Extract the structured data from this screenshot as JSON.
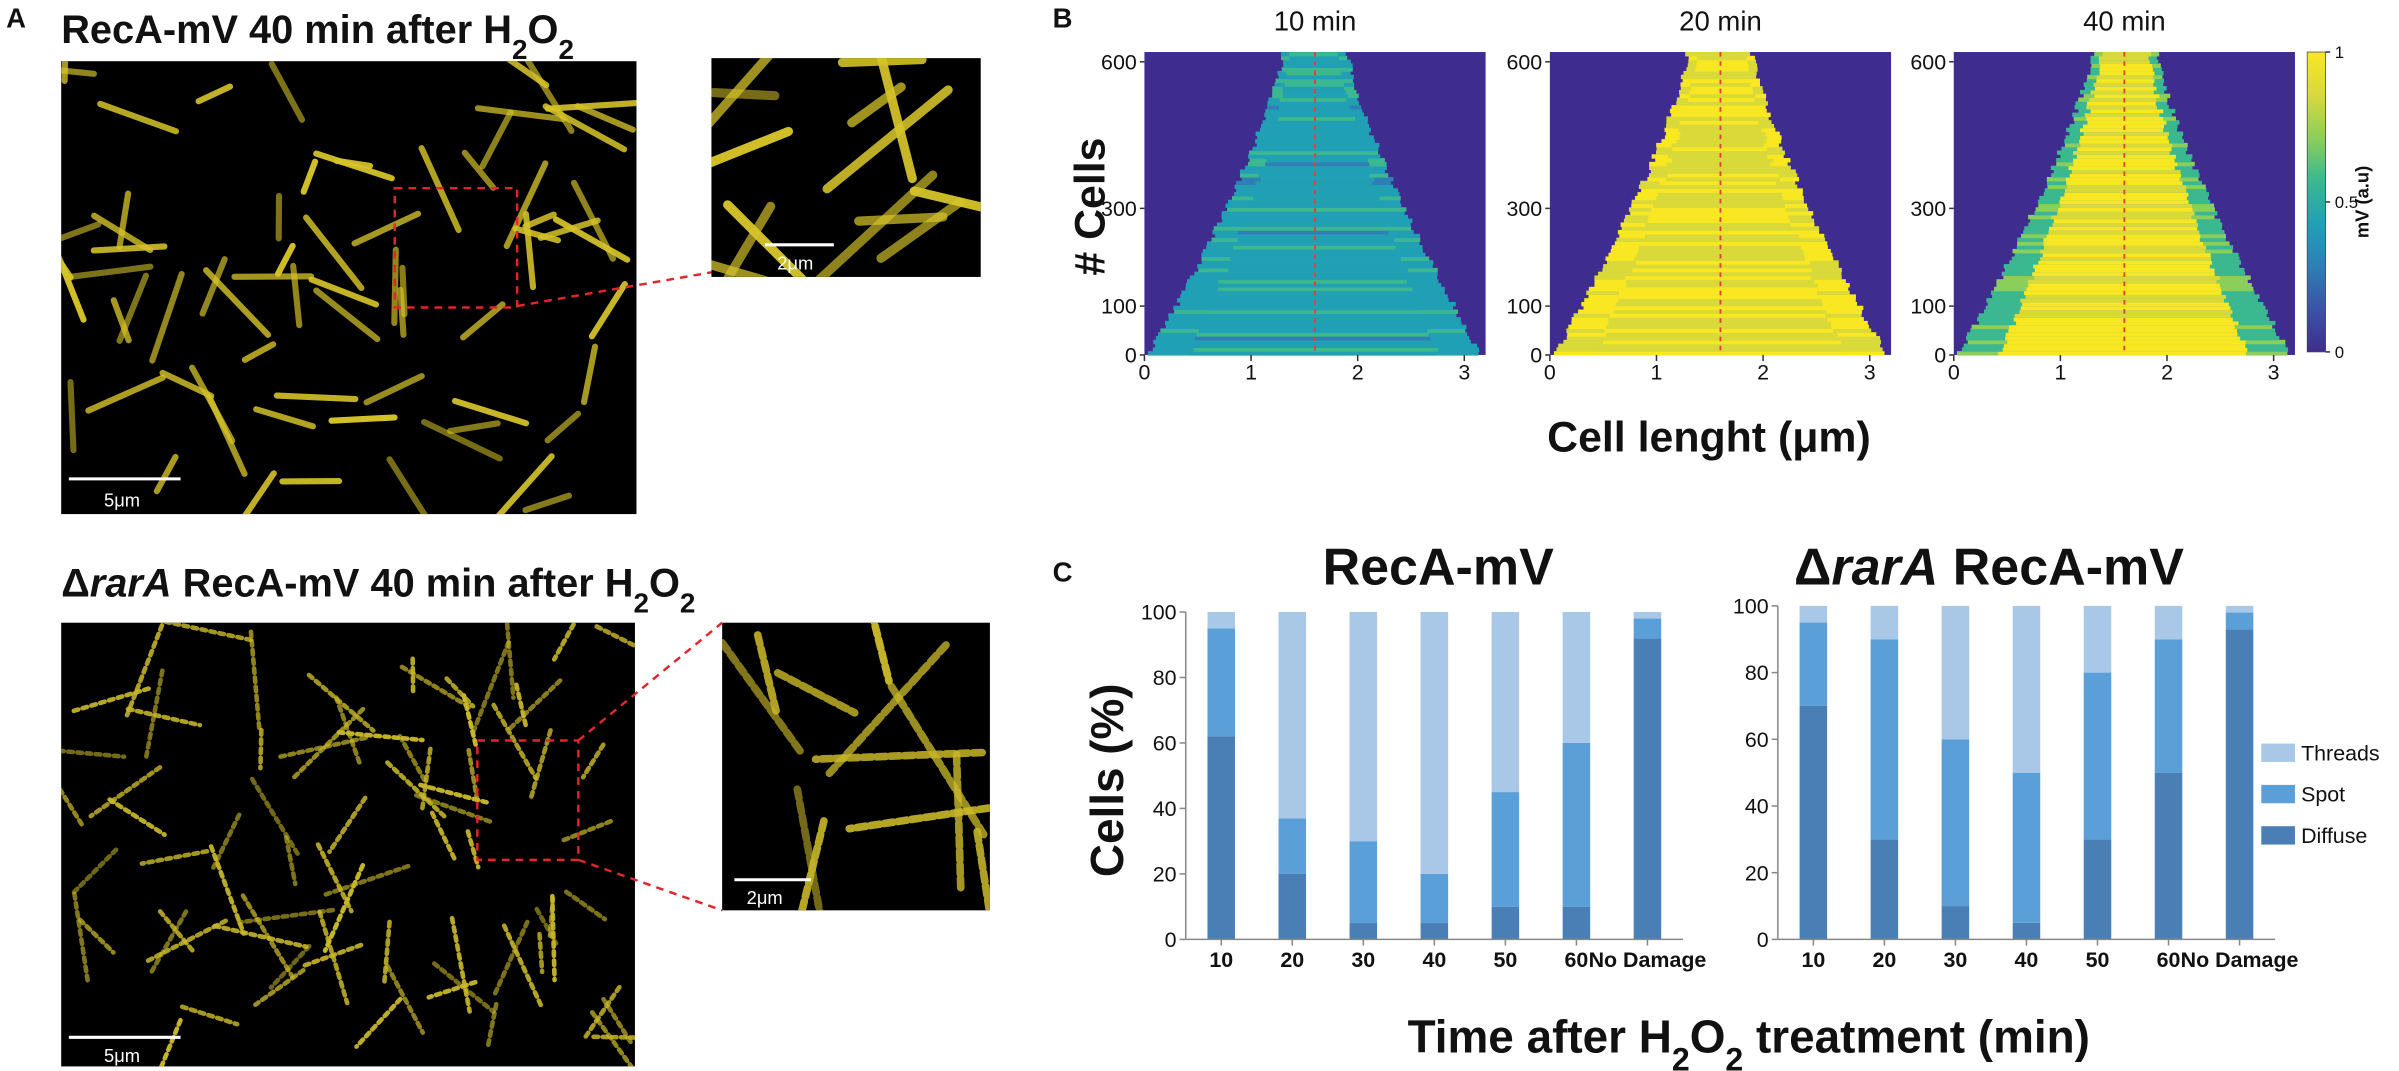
{
  "panel_labels": [
    "A",
    "B",
    "C"
  ],
  "panel_a": {
    "images": [
      {
        "title": [
          {
            "text": "RecA-mV  40 min after H"
          },
          {
            "text": "2",
            "sub": true
          },
          {
            "text": "O"
          },
          {
            "text": "2",
            "sub": true
          }
        ],
        "scale_bar": "5μm",
        "inset_scale_bar": "2μm"
      },
      {
        "title": [
          {
            "text": "Δ"
          },
          {
            "text": "rarA",
            "italic": true
          },
          {
            "text": " RecA-mV  40 min after H"
          },
          {
            "text": "2",
            "sub": true
          },
          {
            "text": "O"
          },
          {
            "text": "2",
            "sub": true
          }
        ],
        "scale_bar": "5μm",
        "inset_scale_bar": "2μm"
      }
    ]
  },
  "panel_b": {
    "x_label": "Cell lenght (μm)",
    "y_label": "# Cells",
    "colorbar": {
      "label": "mV (a.u)",
      "ticks": [
        0,
        0.5,
        1
      ],
      "lim": [
        0,
        1
      ],
      "colors": [
        "#3e2d8f",
        "#3b54a6",
        "#2f7fb6",
        "#21a0b5",
        "#3bb88f",
        "#8cce5a",
        "#d9d93a",
        "#f9e722"
      ]
    }
  },
  "panel_c": {
    "x_label": [
      {
        "text": "Time after H"
      },
      {
        "text": "2",
        "sub": true
      },
      {
        "text": "O"
      },
      {
        "text": "2",
        "sub": true
      },
      {
        "text": " treatment (min)"
      }
    ]
  },
  "chart_data": [
    {
      "type": "heatmap",
      "title": "10 min",
      "xlim": [
        0,
        3.2
      ],
      "ylim": [
        0,
        620
      ],
      "xticks": [
        0,
        1,
        2,
        3
      ],
      "yticks": [
        0,
        100,
        300,
        600
      ],
      "midline": 1.6
    },
    {
      "type": "heatmap",
      "title": "20 min",
      "xlim": [
        0,
        3.2
      ],
      "ylim": [
        0,
        620
      ],
      "xticks": [
        0,
        1,
        2,
        3
      ],
      "yticks": [
        0,
        100,
        300,
        600
      ],
      "midline": 1.6
    },
    {
      "type": "heatmap",
      "title": "40 min",
      "xlim": [
        0,
        3.2
      ],
      "ylim": [
        0,
        620
      ],
      "xticks": [
        0,
        1,
        2,
        3
      ],
      "yticks": [
        0,
        100,
        300,
        600
      ],
      "midline": 1.6
    },
    {
      "type": "stacked_bar",
      "title": [
        {
          "text": "RecA-mV"
        }
      ],
      "y_label": "Cells (%)",
      "categories": [
        "10",
        "20",
        "30",
        "40",
        "50",
        "60",
        "No Damage"
      ],
      "ylim": [
        0,
        100
      ],
      "yticks": [
        0,
        20,
        40,
        60,
        80,
        100
      ],
      "series": [
        {
          "color": "#4a7fb5",
          "values": [
            62,
            20,
            5,
            5,
            10,
            10,
            92
          ]
        },
        {
          "color": "#5b9fd8",
          "values": [
            33,
            17,
            25,
            15,
            35,
            50,
            6
          ]
        },
        {
          "color": "#a9c8e8",
          "values": [
            5,
            63,
            70,
            80,
            55,
            40,
            2
          ]
        }
      ]
    },
    {
      "type": "stacked_bar",
      "title": [
        {
          "text": "Δ"
        },
        {
          "text": "rarA",
          "italic": true
        },
        {
          "text": " RecA-mV"
        }
      ],
      "categories": [
        "10",
        "20",
        "30",
        "40",
        "50",
        "60",
        "No Damage"
      ],
      "ylim": [
        0,
        100
      ],
      "yticks": [
        0,
        20,
        40,
        60,
        80,
        100
      ],
      "series": [
        {
          "name": "Diffuse",
          "color": "#4a7fb5",
          "values": [
            70,
            30,
            10,
            5,
            30,
            50,
            93
          ]
        },
        {
          "name": "Spot",
          "color": "#5b9fd8",
          "values": [
            25,
            60,
            50,
            45,
            50,
            40,
            5
          ]
        },
        {
          "name": "Threads",
          "color": "#a9c8e8",
          "values": [
            5,
            10,
            40,
            50,
            20,
            10,
            2
          ]
        }
      ]
    }
  ]
}
